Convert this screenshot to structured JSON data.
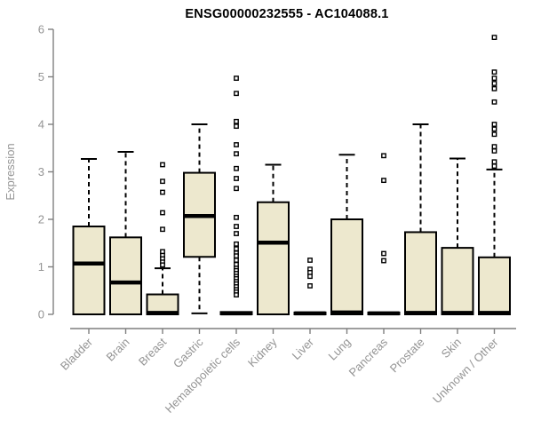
{
  "chart_data": {
    "type": "boxplot",
    "title": "ENSG00000232555 - AC104088.1",
    "xlabel": "",
    "ylabel": "Expression",
    "ylim": [
      0,
      6
    ],
    "yticks": [
      0,
      1,
      2,
      3,
      4,
      5,
      6
    ],
    "grid": false,
    "legend": "none",
    "categories": [
      "Bladder",
      "Brain",
      "Breast",
      "Gastric",
      "Hematopoietic cells",
      "Kidney",
      "Liver",
      "Lung",
      "Pancreas",
      "Prostate",
      "Skin",
      "Unknown / Other"
    ],
    "series": [
      {
        "category": "Bladder",
        "whisker_low": 0,
        "q1": 0,
        "median": 1.07,
        "q3": 1.85,
        "whisker_high": 3.27,
        "outliers": []
      },
      {
        "category": "Brain",
        "whisker_low": 0,
        "q1": 0,
        "median": 0.67,
        "q3": 1.62,
        "whisker_high": 3.42,
        "outliers": []
      },
      {
        "category": "Breast",
        "whisker_low": 0,
        "q1": 0,
        "median": 0.03,
        "q3": 0.42,
        "whisker_high": 0.97,
        "outliers": [
          3.15,
          2.8,
          2.57,
          2.14,
          1.79,
          1.32,
          1.24,
          1.17,
          1.1,
          1.04
        ]
      },
      {
        "category": "Gastric",
        "whisker_low": 0.02,
        "q1": 1.21,
        "median": 2.07,
        "q3": 2.98,
        "whisker_high": 4.0,
        "outliers": []
      },
      {
        "category": "Hematopoietic cells",
        "whisker_low": 0,
        "q1": 0,
        "median": 0.02,
        "q3": 0.05,
        "whisker_high": 0.05,
        "outliers": [
          4.97,
          4.65,
          4.06,
          3.96,
          3.57,
          3.38,
          3.07,
          2.86,
          2.65,
          2.04,
          1.85,
          1.7,
          1.48,
          1.38,
          1.29,
          1.23,
          1.14,
          1.05,
          0.97,
          0.92,
          0.86,
          0.8,
          0.75,
          0.69,
          0.64,
          0.58,
          0.52,
          0.47,
          0.41
        ]
      },
      {
        "category": "Kidney",
        "whisker_low": 0,
        "q1": 0,
        "median": 1.51,
        "q3": 2.36,
        "whisker_high": 3.15,
        "outliers": []
      },
      {
        "category": "Liver",
        "whisker_low": 0,
        "q1": 0,
        "median": 0.02,
        "q3": 0.04,
        "whisker_high": 0.04,
        "outliers": [
          1.14,
          0.95,
          0.88,
          0.8,
          0.6
        ]
      },
      {
        "category": "Lung",
        "whisker_low": 0,
        "q1": 0,
        "median": 0.04,
        "q3": 2.0,
        "whisker_high": 3.36,
        "outliers": []
      },
      {
        "category": "Pancreas",
        "whisker_low": 0,
        "q1": 0,
        "median": 0.02,
        "q3": 0.04,
        "whisker_high": 0.04,
        "outliers": [
          3.34,
          2.82,
          1.28,
          1.13
        ]
      },
      {
        "category": "Prostate",
        "whisker_low": 0,
        "q1": 0,
        "median": 0.03,
        "q3": 1.73,
        "whisker_high": 4.0,
        "outliers": []
      },
      {
        "category": "Skin",
        "whisker_low": 0,
        "q1": 0,
        "median": 0.03,
        "q3": 1.4,
        "whisker_high": 3.28,
        "outliers": []
      },
      {
        "category": "Unknown / Other",
        "whisker_low": 0,
        "q1": 0,
        "median": 0.03,
        "q3": 1.2,
        "whisker_high": 3.05,
        "outliers": [
          5.83,
          5.1,
          4.97,
          4.86,
          4.75,
          4.47,
          4.0,
          3.9,
          3.79,
          3.53,
          3.44,
          3.21,
          3.12
        ]
      }
    ],
    "colors": {
      "box_fill": "#EDE8CE",
      "box_stroke": "#000000",
      "median": "#000000",
      "whisker": "#000000",
      "outlier_stroke": "#000000",
      "outlier_fill": "#ffffff",
      "axis_line": "#7f7f7f",
      "axis_text": "#949494",
      "title_text": "#000000",
      "background": "#ffffff"
    }
  }
}
